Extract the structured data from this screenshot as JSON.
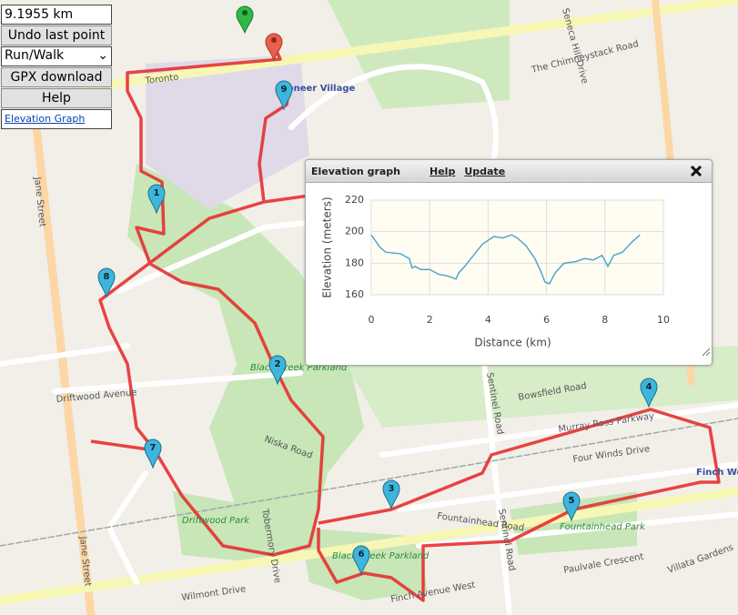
{
  "controls": {
    "distance": "9.1955 km",
    "undo": "Undo last point",
    "mode": "Run/Walk",
    "gpx": "GPX download",
    "help": "Help",
    "elevation_link": "Elevation Graph"
  },
  "map": {
    "labels": [
      "Jane Street",
      "Jane Street",
      "Driftwood Avenue",
      "Niska Road",
      "Black Creek Parkland",
      "Driftwood Park",
      "Black Creek Parkland",
      "Murray Ross Parkway",
      "Four Winds Drive",
      "Fountainhead Road",
      "Fountainhead Park",
      "Sentinel Road",
      "Sentinel Road",
      "Bowsfield Road",
      "Finch Avenue West",
      "Paulvale Crescent",
      "Villata Gardens",
      "Wilmont Drive",
      "Tobermory Drive",
      "Pioneer Village",
      "Toronto",
      "The Chimneystack Road",
      "Seneca Hill Drive",
      "Finch West"
    ],
    "markers": [
      "1",
      "2",
      "3",
      "4",
      "5",
      "6",
      "7",
      "8",
      "9"
    ]
  },
  "elevation_panel": {
    "title": "Elevation graph",
    "help": "Help",
    "update": "Update"
  },
  "chart_data": {
    "type": "line",
    "xlabel": "Distance (km)",
    "ylabel": "Elevation (meters)",
    "color": "#4fa8c9",
    "x": [
      0,
      0.3,
      0.5,
      1.0,
      1.3,
      1.4,
      1.5,
      1.7,
      2.0,
      2.3,
      2.6,
      2.9,
      3.0,
      3.2,
      3.5,
      3.8,
      4.2,
      4.5,
      4.8,
      5.0,
      5.3,
      5.6,
      5.8,
      5.95,
      6.1,
      6.3,
      6.6,
      7.0,
      7.3,
      7.6,
      7.9,
      8.1,
      8.3,
      8.6,
      8.9,
      9.2
    ],
    "values": [
      198,
      190,
      187,
      186,
      183,
      177,
      178,
      176,
      176,
      173,
      172,
      170,
      174,
      178,
      185,
      192,
      197,
      196,
      198,
      196,
      191,
      183,
      175,
      168,
      167,
      174,
      180,
      181,
      183,
      182,
      185,
      178,
      185,
      187,
      193,
      198
    ],
    "xlim": [
      0,
      10
    ],
    "xticks": [
      0,
      2,
      4,
      6,
      8,
      10
    ],
    "ylim": [
      160,
      220
    ],
    "yticks": [
      160,
      180,
      200,
      220
    ],
    "grid": true
  }
}
